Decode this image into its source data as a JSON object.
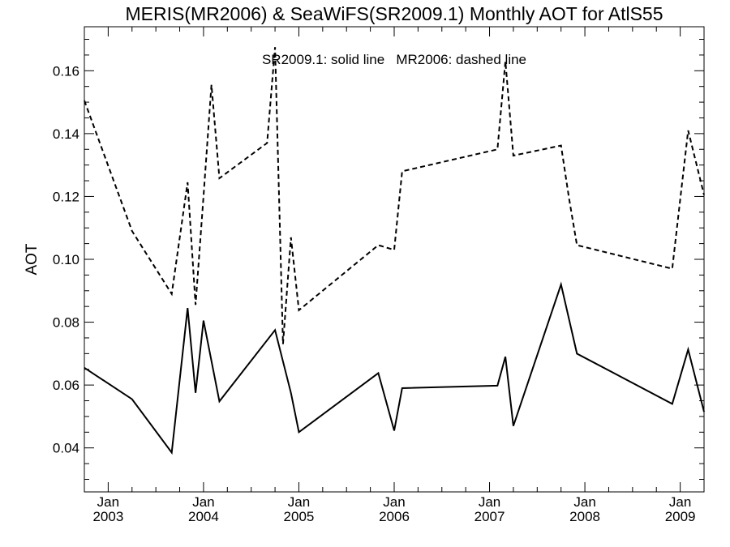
{
  "chart_data": {
    "type": "line",
    "title": "MERIS(MR2006) & SeaWiFS(SR2009.1) Monthly AOT for AtlS55",
    "ylabel": "AOT",
    "xlabel": "",
    "annotation": "SR2009.1: solid line   MR2006: dashed line",
    "xlim": [
      "2002-10",
      "2009-04"
    ],
    "ylim": [
      0.026,
      0.174
    ],
    "grid": false,
    "x_ticks": [
      {
        "date": "2003-01",
        "month": "Jan",
        "year": "2003"
      },
      {
        "date": "2004-01",
        "month": "Jan",
        "year": "2004"
      },
      {
        "date": "2005-01",
        "month": "Jan",
        "year": "2005"
      },
      {
        "date": "2006-01",
        "month": "Jan",
        "year": "2006"
      },
      {
        "date": "2007-01",
        "month": "Jan",
        "year": "2007"
      },
      {
        "date": "2008-01",
        "month": "Jan",
        "year": "2008"
      },
      {
        "date": "2009-01",
        "month": "Jan",
        "year": "2009"
      }
    ],
    "y_ticks": [
      0.04,
      0.06,
      0.08,
      0.1,
      0.12,
      0.14,
      0.16
    ],
    "y_tick_labels": [
      "0.04",
      "0.06",
      "0.08",
      "0.10",
      "0.12",
      "0.14",
      "0.16"
    ],
    "series": [
      {
        "key": "SR2009.1",
        "style": "solid",
        "color": "#000000",
        "points": [
          [
            "2002-10",
            0.0655
          ],
          [
            "2003-04",
            0.0555
          ],
          [
            "2003-09",
            0.0385
          ],
          [
            "2003-11",
            0.0845
          ],
          [
            "2003-12",
            0.0575
          ],
          [
            "2004-01",
            0.0805
          ],
          [
            "2004-03",
            0.0548
          ],
          [
            "2004-10",
            0.0775
          ],
          [
            "2004-12",
            0.0575
          ],
          [
            "2005-01",
            0.045
          ],
          [
            "2005-11",
            0.0638
          ],
          [
            "2006-01",
            0.0455
          ],
          [
            "2006-02",
            0.059
          ],
          [
            "2007-02",
            0.0598
          ],
          [
            "2007-03",
            0.069
          ],
          [
            "2007-04",
            0.047
          ],
          [
            "2007-10",
            0.092
          ],
          [
            "2007-12",
            0.07
          ],
          [
            "2008-12",
            0.054
          ],
          [
            "2009-02",
            0.0713
          ],
          [
            "2009-04",
            0.0515
          ]
        ]
      },
      {
        "key": "MR2006",
        "style": "dashed",
        "color": "#000000",
        "points": [
          [
            "2002-10",
            0.1505
          ],
          [
            "2003-04",
            0.109
          ],
          [
            "2003-09",
            0.089
          ],
          [
            "2003-11",
            0.1245
          ],
          [
            "2003-12",
            0.0855
          ],
          [
            "2004-01",
            0.12
          ],
          [
            "2004-02",
            0.1555
          ],
          [
            "2004-03",
            0.1258
          ],
          [
            "2004-09",
            0.137
          ],
          [
            "2004-10",
            0.1675
          ],
          [
            "2004-11",
            0.073
          ],
          [
            "2004-12",
            0.107
          ],
          [
            "2005-01",
            0.0838
          ],
          [
            "2005-11",
            0.1045
          ],
          [
            "2006-01",
            0.103
          ],
          [
            "2006-02",
            0.128
          ],
          [
            "2007-02",
            0.135
          ],
          [
            "2007-03",
            0.163
          ],
          [
            "2007-04",
            0.133
          ],
          [
            "2007-10",
            0.1362
          ],
          [
            "2007-11",
            0.1195
          ],
          [
            "2007-12",
            0.1045
          ],
          [
            "2008-12",
            0.097
          ],
          [
            "2009-02",
            0.141
          ],
          [
            "2009-04",
            0.1205
          ]
        ]
      }
    ]
  }
}
